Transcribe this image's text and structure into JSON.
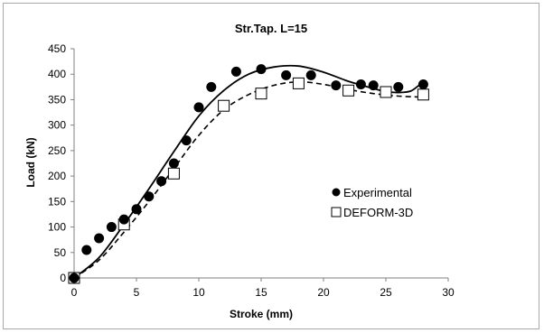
{
  "chart_data": {
    "type": "scatter",
    "title": "Str.Tap. L=15",
    "xlabel": "Stroke (mm)",
    "ylabel": "Load (kN)",
    "xlim": [
      0,
      30
    ],
    "ylim": [
      0,
      450
    ],
    "xticks": [
      0,
      5,
      10,
      15,
      20,
      25,
      30
    ],
    "yticks": [
      0,
      50,
      100,
      150,
      200,
      250,
      300,
      350,
      400,
      450
    ],
    "grid": false,
    "legend_position": "right",
    "series": [
      {
        "name": "Experimental",
        "marker": "filled-circle",
        "color": "#000000",
        "points": [
          [
            0,
            0
          ],
          [
            1,
            55
          ],
          [
            2,
            78
          ],
          [
            3,
            100
          ],
          [
            4,
            115
          ],
          [
            5,
            135
          ],
          [
            6,
            160
          ],
          [
            7,
            190
          ],
          [
            8,
            225
          ],
          [
            9,
            270
          ],
          [
            10,
            335
          ],
          [
            11,
            375
          ],
          [
            13,
            405
          ],
          [
            15,
            410
          ],
          [
            17,
            398
          ],
          [
            19,
            398
          ],
          [
            21,
            378
          ],
          [
            23,
            380
          ],
          [
            24,
            378
          ],
          [
            26,
            375
          ],
          [
            28,
            380
          ]
        ],
        "trend": [
          [
            0,
            0
          ],
          [
            2,
            40
          ],
          [
            4,
            105
          ],
          [
            6,
            175
          ],
          [
            8,
            248
          ],
          [
            10,
            318
          ],
          [
            12,
            368
          ],
          [
            14,
            400
          ],
          [
            16,
            414
          ],
          [
            18,
            416
          ],
          [
            20,
            404
          ],
          [
            22,
            386
          ],
          [
            24,
            372
          ],
          [
            25,
            366
          ],
          [
            26,
            364
          ],
          [
            27,
            367
          ],
          [
            27.8,
            380
          ],
          [
            28,
            372
          ]
        ]
      },
      {
        "name": "DEFORM-3D",
        "marker": "open-square",
        "color": "#000000",
        "points": [
          [
            0,
            0
          ],
          [
            4,
            105
          ],
          [
            8,
            205
          ],
          [
            12,
            338
          ],
          [
            15,
            362
          ],
          [
            18,
            382
          ],
          [
            22,
            368
          ],
          [
            25,
            365
          ],
          [
            28,
            360
          ]
        ],
        "trend": [
          [
            0,
            0
          ],
          [
            2,
            35
          ],
          [
            4,
            90
          ],
          [
            6,
            150
          ],
          [
            8,
            215
          ],
          [
            10,
            280
          ],
          [
            12,
            330
          ],
          [
            14,
            360
          ],
          [
            16,
            378
          ],
          [
            18,
            385
          ],
          [
            20,
            380
          ],
          [
            22,
            370
          ],
          [
            24,
            362
          ],
          [
            26,
            357
          ],
          [
            28,
            355
          ]
        ]
      }
    ]
  }
}
